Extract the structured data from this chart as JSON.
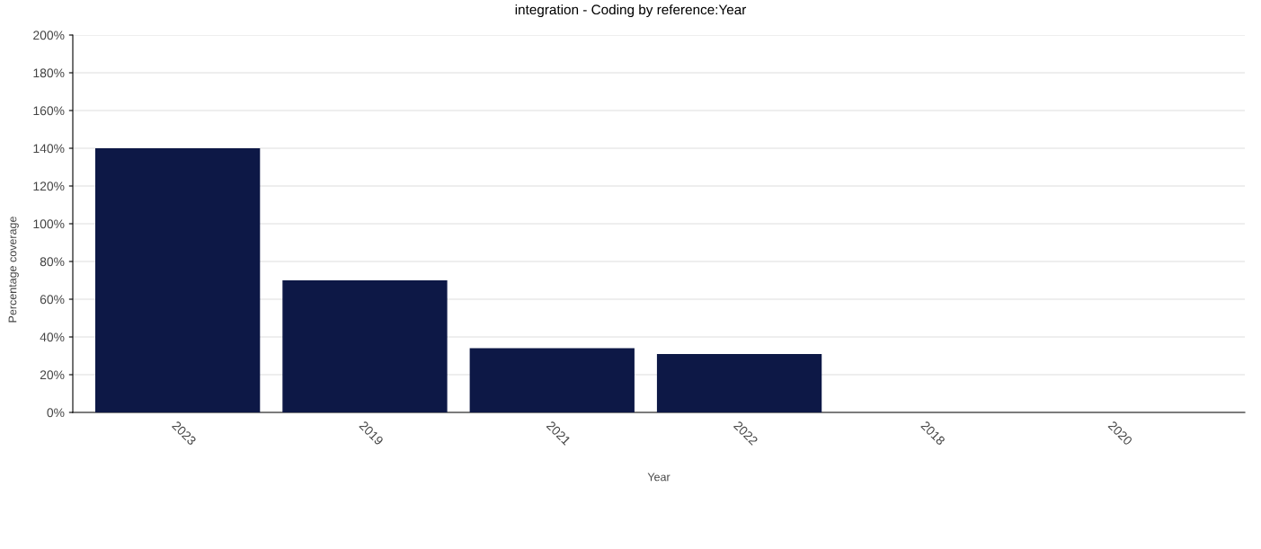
{
  "chart_data": {
    "type": "bar",
    "title": "integration - Coding by reference:Year",
    "xlabel": "Year",
    "ylabel": "Percentage coverage",
    "categories": [
      "2023",
      "2019",
      "2021",
      "2022",
      "2018",
      "2020"
    ],
    "values": [
      140,
      70,
      34,
      31,
      0,
      0
    ],
    "color": "#0d1846",
    "ylim": [
      0,
      200
    ],
    "yticks": [
      {
        "value": 0,
        "label": "0%"
      },
      {
        "value": 20,
        "label": "20%"
      },
      {
        "value": 40,
        "label": "40%"
      },
      {
        "value": 60,
        "label": "60%"
      },
      {
        "value": 80,
        "label": "80%"
      },
      {
        "value": 100,
        "label": "100%"
      },
      {
        "value": 120,
        "label": "120%"
      },
      {
        "value": 140,
        "label": "140%"
      },
      {
        "value": 160,
        "label": "160%"
      },
      {
        "value": 180,
        "label": "180%"
      },
      {
        "value": 200,
        "label": "200%"
      }
    ],
    "grid": "y",
    "legend": false
  }
}
